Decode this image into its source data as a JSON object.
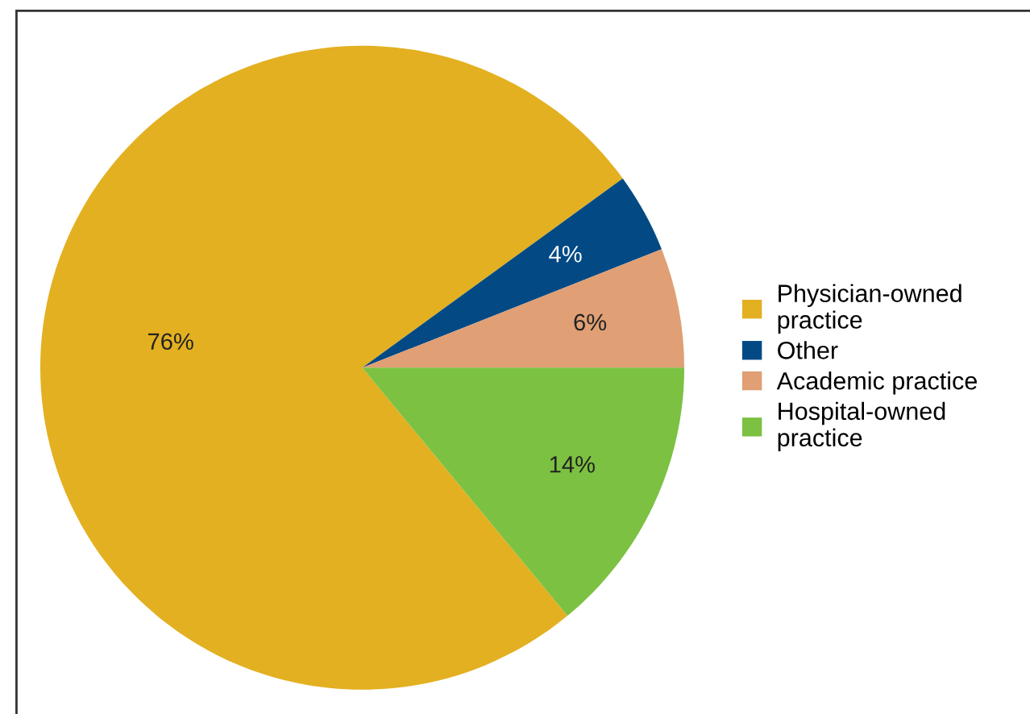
{
  "chart_data": {
    "type": "pie",
    "categories": [
      "Physician-owned\npractice",
      "Other",
      "Academic practice",
      "Hospital-owned\npractice"
    ],
    "values": [
      76,
      4,
      6,
      14
    ],
    "colors": [
      "#e3b021",
      "#034a85",
      "#e09f74",
      "#7cc142"
    ],
    "value_labels": [
      "76%",
      "4%",
      "6%",
      "14%"
    ],
    "legend": "right"
  }
}
